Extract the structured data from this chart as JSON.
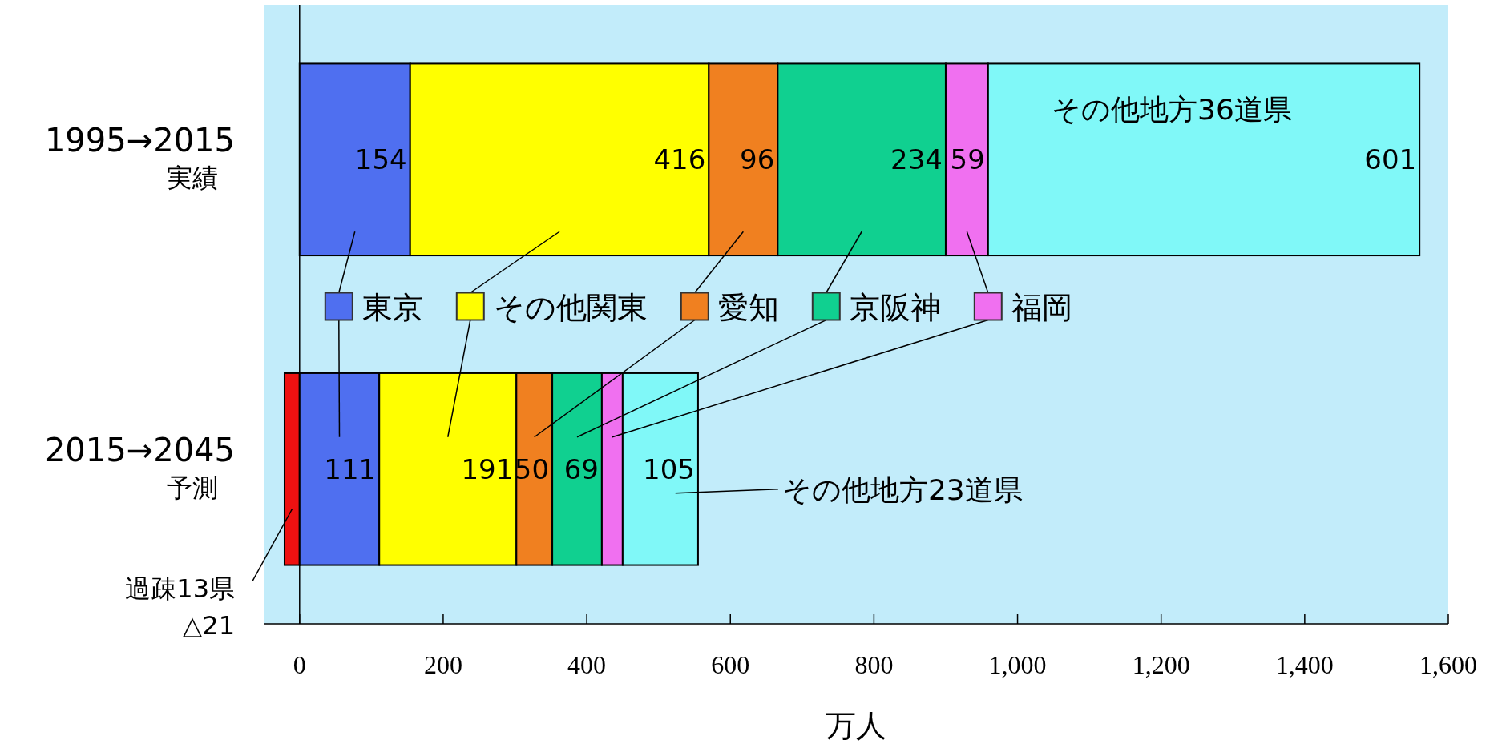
{
  "chart_data": {
    "type": "bar",
    "orientation": "horizontal",
    "stacked": true,
    "xlabel": "万人",
    "categories": [
      "1995→2015 実績",
      "2015→2045 予測"
    ],
    "series": [
      {
        "color": "#ee1111",
        "values": [
          null,
          -21
        ]
      },
      {
        "name": "東京",
        "color": "#4f6ff0",
        "values": [
          154,
          111
        ],
        "value_labels": [
          "154",
          "111"
        ]
      },
      {
        "name": "その他関東",
        "color": "#ffff00",
        "values": [
          416,
          191
        ],
        "value_labels": [
          "416",
          "191"
        ]
      },
      {
        "name": "愛知",
        "color": "#f08020",
        "values": [
          96,
          50
        ],
        "value_labels": [
          "96",
          "50"
        ]
      },
      {
        "name": "京阪神",
        "color": "#10d090",
        "values": [
          234,
          69
        ],
        "value_labels": [
          "234",
          "69"
        ]
      },
      {
        "name": "福岡",
        "color": "#f070f0",
        "values": [
          59,
          29
        ],
        "value_labels": [
          "59",
          null
        ]
      },
      {
        "color": "#80f8f8",
        "values": [
          601,
          105
        ],
        "value_labels": [
          "601",
          "105"
        ]
      }
    ],
    "annotations": [
      "その他地方36道県",
      "その他地方23道県",
      "過疎13県 △21"
    ],
    "ref_lines": [
      {
        "axis": "x",
        "value": 0
      }
    ],
    "xlim": [
      -50,
      1600
    ],
    "xticks": [
      0,
      200,
      400,
      600,
      800,
      {
        "value": 1000,
        "label": "1,000"
      },
      {
        "value": 1200,
        "label": "1,200"
      },
      {
        "value": 1400,
        "label": "1,400"
      },
      {
        "value": 1600,
        "label": "1,600"
      }
    ],
    "legend": "center"
  }
}
